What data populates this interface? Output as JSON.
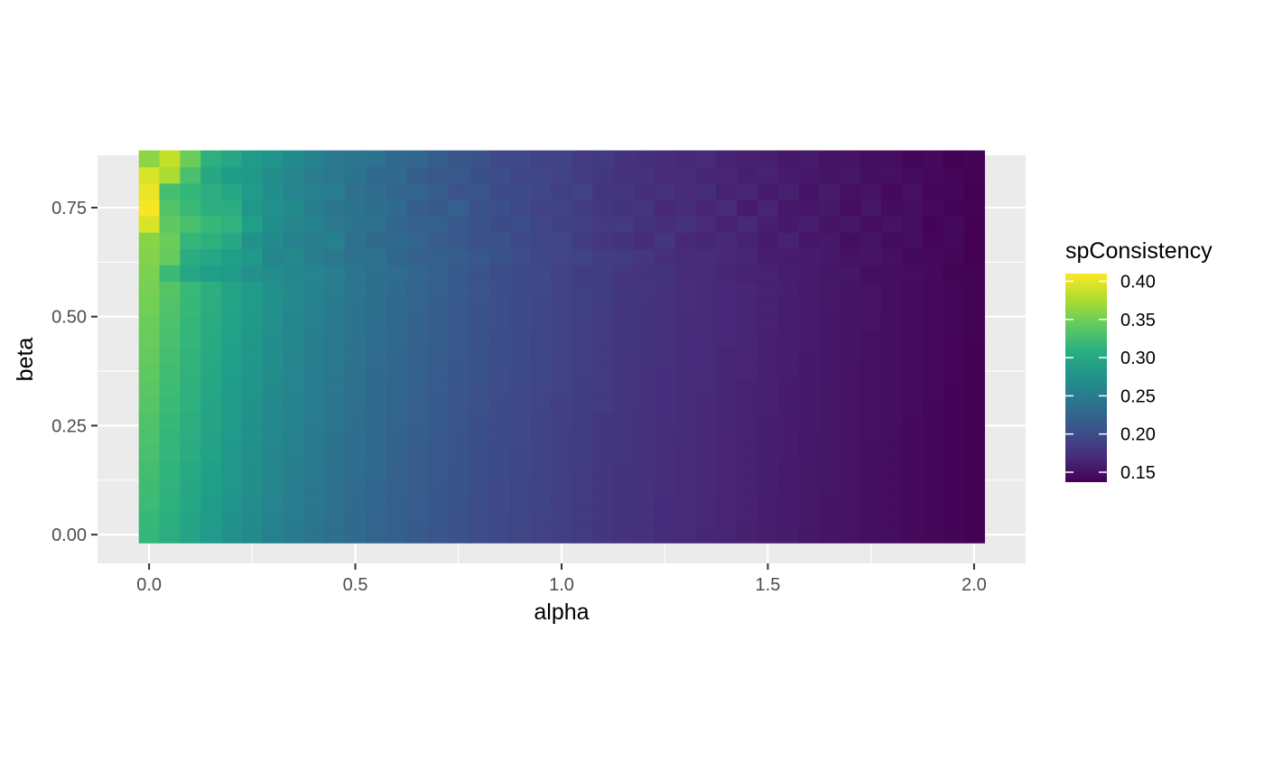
{
  "chart_data": {
    "type": "heatmap",
    "xlabel": "alpha",
    "ylabel": "beta",
    "xlim": [
      -0.125,
      2.125
    ],
    "ylim": [
      -0.066,
      0.87
    ],
    "x_ticks": [
      0.0,
      0.5,
      1.0,
      1.5,
      2.0
    ],
    "x_tick_labels": [
      "0.0",
      "0.5",
      "1.0",
      "1.5",
      "2.0"
    ],
    "y_ticks": [
      0.0,
      0.25,
      0.5,
      0.75
    ],
    "y_tick_labels": [
      "0.00",
      "0.25",
      "0.50",
      "0.75"
    ],
    "x": [
      0.0,
      0.05,
      0.1,
      0.15,
      0.2,
      0.25,
      0.3,
      0.35,
      0.4,
      0.45,
      0.5,
      0.55,
      0.6,
      0.65,
      0.7,
      0.75,
      0.8,
      0.85,
      0.9,
      0.95,
      1.0,
      1.05,
      1.1,
      1.15,
      1.2,
      1.25,
      1.3,
      1.35,
      1.4,
      1.45,
      1.5,
      1.55,
      1.6,
      1.65,
      1.7,
      1.75,
      1.8,
      1.85,
      1.9,
      1.95,
      2.0
    ],
    "y": [
      0.0,
      0.0375,
      0.075,
      0.1125,
      0.15,
      0.1875,
      0.225,
      0.2625,
      0.3,
      0.3375,
      0.375,
      0.4125,
      0.45,
      0.4875,
      0.525,
      0.5625,
      0.6,
      0.6375,
      0.675,
      0.7125,
      0.75,
      0.7875,
      0.825,
      0.8625
    ],
    "rows_note": "z rows correspond to y (bottom to top), columns to x",
    "z": [
      [
        0.318,
        0.306,
        0.295,
        0.284,
        0.275,
        0.266,
        0.257,
        0.249,
        0.242,
        0.236,
        0.23,
        0.224,
        0.219,
        0.214,
        0.209,
        0.205,
        0.201,
        0.197,
        0.193,
        0.19,
        0.187,
        0.183,
        0.18,
        0.177,
        0.175,
        0.172,
        0.169,
        0.166,
        0.164,
        0.161,
        0.159,
        0.157,
        0.154,
        0.152,
        0.15,
        0.148,
        0.146,
        0.144,
        0.142,
        0.14,
        0.138
      ],
      [
        0.32,
        0.308,
        0.297,
        0.286,
        0.277,
        0.268,
        0.259,
        0.251,
        0.244,
        0.237,
        0.231,
        0.225,
        0.22,
        0.215,
        0.21,
        0.206,
        0.201,
        0.197,
        0.194,
        0.19,
        0.187,
        0.184,
        0.181,
        0.178,
        0.175,
        0.172,
        0.169,
        0.167,
        0.164,
        0.162,
        0.159,
        0.157,
        0.155,
        0.152,
        0.15,
        0.148,
        0.146,
        0.144,
        0.142,
        0.14,
        0.138
      ],
      [
        0.323,
        0.31,
        0.299,
        0.288,
        0.278,
        0.269,
        0.26,
        0.252,
        0.245,
        0.238,
        0.232,
        0.226,
        0.22,
        0.215,
        0.21,
        0.206,
        0.202,
        0.198,
        0.194,
        0.191,
        0.187,
        0.184,
        0.181,
        0.178,
        0.175,
        0.172,
        0.17,
        0.167,
        0.164,
        0.162,
        0.159,
        0.157,
        0.155,
        0.152,
        0.15,
        0.148,
        0.146,
        0.144,
        0.142,
        0.14,
        0.138
      ],
      [
        0.325,
        0.312,
        0.301,
        0.29,
        0.28,
        0.271,
        0.262,
        0.254,
        0.246,
        0.239,
        0.233,
        0.227,
        0.221,
        0.216,
        0.211,
        0.207,
        0.202,
        0.198,
        0.194,
        0.191,
        0.188,
        0.184,
        0.181,
        0.178,
        0.175,
        0.173,
        0.17,
        0.167,
        0.165,
        0.162,
        0.16,
        0.157,
        0.155,
        0.153,
        0.15,
        0.148,
        0.146,
        0.144,
        0.142,
        0.14,
        0.138
      ],
      [
        0.327,
        0.314,
        0.302,
        0.291,
        0.281,
        0.272,
        0.263,
        0.255,
        0.247,
        0.24,
        0.234,
        0.228,
        0.222,
        0.217,
        0.212,
        0.207,
        0.203,
        0.199,
        0.195,
        0.191,
        0.188,
        0.185,
        0.181,
        0.178,
        0.176,
        0.173,
        0.17,
        0.167,
        0.165,
        0.162,
        0.16,
        0.157,
        0.155,
        0.153,
        0.151,
        0.148,
        0.146,
        0.144,
        0.142,
        0.14,
        0.138
      ],
      [
        0.33,
        0.316,
        0.304,
        0.293,
        0.283,
        0.273,
        0.264,
        0.256,
        0.248,
        0.241,
        0.235,
        0.228,
        0.223,
        0.217,
        0.212,
        0.208,
        0.203,
        0.199,
        0.195,
        0.192,
        0.188,
        0.185,
        0.182,
        0.179,
        0.176,
        0.173,
        0.17,
        0.168,
        0.165,
        0.162,
        0.16,
        0.158,
        0.155,
        0.153,
        0.151,
        0.148,
        0.146,
        0.144,
        0.142,
        0.14,
        0.138
      ],
      [
        0.332,
        0.318,
        0.306,
        0.294,
        0.284,
        0.274,
        0.265,
        0.257,
        0.249,
        0.242,
        0.235,
        0.229,
        0.223,
        0.218,
        0.213,
        0.208,
        0.204,
        0.199,
        0.196,
        0.192,
        0.188,
        0.185,
        0.182,
        0.179,
        0.176,
        0.173,
        0.171,
        0.168,
        0.165,
        0.163,
        0.16,
        0.158,
        0.155,
        0.153,
        0.151,
        0.149,
        0.146,
        0.144,
        0.142,
        0.14,
        0.138
      ],
      [
        0.334,
        0.32,
        0.307,
        0.296,
        0.285,
        0.275,
        0.266,
        0.258,
        0.25,
        0.243,
        0.236,
        0.23,
        0.224,
        0.219,
        0.214,
        0.209,
        0.204,
        0.2,
        0.196,
        0.192,
        0.189,
        0.186,
        0.182,
        0.179,
        0.176,
        0.174,
        0.171,
        0.168,
        0.166,
        0.163,
        0.16,
        0.158,
        0.156,
        0.153,
        0.151,
        0.149,
        0.147,
        0.144,
        0.142,
        0.14,
        0.138
      ],
      [
        0.337,
        0.322,
        0.309,
        0.297,
        0.286,
        0.276,
        0.267,
        0.259,
        0.251,
        0.244,
        0.237,
        0.231,
        0.225,
        0.219,
        0.214,
        0.209,
        0.205,
        0.2,
        0.196,
        0.193,
        0.189,
        0.186,
        0.183,
        0.18,
        0.177,
        0.174,
        0.171,
        0.168,
        0.166,
        0.163,
        0.161,
        0.158,
        0.156,
        0.153,
        0.151,
        0.149,
        0.147,
        0.145,
        0.142,
        0.14,
        0.138
      ],
      [
        0.339,
        0.324,
        0.311,
        0.299,
        0.288,
        0.278,
        0.268,
        0.26,
        0.252,
        0.245,
        0.238,
        0.231,
        0.225,
        0.22,
        0.215,
        0.21,
        0.205,
        0.201,
        0.197,
        0.193,
        0.19,
        0.186,
        0.183,
        0.18,
        0.177,
        0.174,
        0.171,
        0.169,
        0.166,
        0.163,
        0.161,
        0.158,
        0.156,
        0.154,
        0.151,
        0.149,
        0.147,
        0.145,
        0.143,
        0.14,
        0.138
      ],
      [
        0.341,
        0.326,
        0.313,
        0.3,
        0.289,
        0.279,
        0.27,
        0.261,
        0.253,
        0.246,
        0.239,
        0.232,
        0.226,
        0.221,
        0.215,
        0.21,
        0.206,
        0.201,
        0.197,
        0.194,
        0.19,
        0.187,
        0.183,
        0.18,
        0.177,
        0.174,
        0.172,
        0.169,
        0.166,
        0.164,
        0.161,
        0.159,
        0.156,
        0.154,
        0.151,
        0.149,
        0.147,
        0.145,
        0.143,
        0.141,
        0.138
      ],
      [
        0.344,
        0.328,
        0.314,
        0.302,
        0.291,
        0.28,
        0.271,
        0.262,
        0.254,
        0.247,
        0.24,
        0.233,
        0.227,
        0.221,
        0.216,
        0.211,
        0.206,
        0.202,
        0.198,
        0.194,
        0.19,
        0.187,
        0.184,
        0.181,
        0.178,
        0.175,
        0.172,
        0.169,
        0.166,
        0.164,
        0.161,
        0.159,
        0.156,
        0.154,
        0.152,
        0.149,
        0.147,
        0.145,
        0.143,
        0.141,
        0.138
      ],
      [
        0.346,
        0.33,
        0.316,
        0.303,
        0.292,
        0.281,
        0.272,
        0.263,
        0.255,
        0.247,
        0.24,
        0.234,
        0.228,
        0.222,
        0.217,
        0.212,
        0.207,
        0.202,
        0.198,
        0.194,
        0.191,
        0.187,
        0.184,
        0.181,
        0.178,
        0.175,
        0.172,
        0.169,
        0.167,
        0.164,
        0.161,
        0.159,
        0.157,
        0.154,
        0.152,
        0.149,
        0.147,
        0.145,
        0.143,
        0.141,
        0.139
      ],
      [
        0.348,
        0.332,
        0.318,
        0.305,
        0.293,
        0.283,
        0.273,
        0.264,
        0.256,
        0.248,
        0.241,
        0.235,
        0.229,
        0.223,
        0.217,
        0.212,
        0.207,
        0.203,
        0.199,
        0.195,
        0.191,
        0.188,
        0.184,
        0.181,
        0.178,
        0.175,
        0.172,
        0.17,
        0.167,
        0.164,
        0.162,
        0.159,
        0.157,
        0.154,
        0.152,
        0.15,
        0.147,
        0.145,
        0.143,
        0.141,
        0.139
      ],
      [
        0.351,
        0.334,
        0.32,
        0.306,
        0.295,
        0.284,
        0.274,
        0.265,
        0.257,
        0.249,
        0.242,
        0.236,
        0.229,
        0.224,
        0.218,
        0.213,
        0.208,
        0.203,
        0.199,
        0.195,
        0.192,
        0.188,
        0.185,
        0.182,
        0.178,
        0.176,
        0.173,
        0.17,
        0.167,
        0.164,
        0.162,
        0.159,
        0.157,
        0.155,
        0.152,
        0.15,
        0.148,
        0.145,
        0.143,
        0.141,
        0.139
      ],
      [
        0.353,
        0.336,
        0.321,
        0.308,
        0.296,
        0.285,
        0.275,
        0.266,
        0.258,
        0.25,
        0.243,
        0.236,
        0.23,
        0.224,
        0.219,
        0.213,
        0.209,
        0.204,
        0.2,
        0.196,
        0.192,
        0.188,
        0.185,
        0.182,
        0.179,
        0.176,
        0.173,
        0.17,
        0.167,
        0.165,
        0.162,
        0.16,
        0.157,
        0.155,
        0.152,
        0.15,
        0.148,
        0.145,
        0.143,
        0.141,
        0.139
      ],
      [
        0.355,
        0.322,
        0.298,
        0.29,
        0.285,
        0.273,
        0.27,
        0.262,
        0.26,
        0.252,
        0.244,
        0.236,
        0.233,
        0.227,
        0.221,
        0.214,
        0.208,
        0.202,
        0.199,
        0.197,
        0.19,
        0.185,
        0.186,
        0.18,
        0.177,
        0.178,
        0.172,
        0.17,
        0.166,
        0.162,
        0.163,
        0.159,
        0.157,
        0.154,
        0.153,
        0.148,
        0.147,
        0.146,
        0.144,
        0.139,
        0.14
      ],
      [
        0.358,
        0.345,
        0.305,
        0.298,
        0.29,
        0.282,
        0.262,
        0.265,
        0.254,
        0.246,
        0.239,
        0.24,
        0.227,
        0.22,
        0.219,
        0.217,
        0.211,
        0.206,
        0.201,
        0.195,
        0.193,
        0.191,
        0.186,
        0.184,
        0.18,
        0.174,
        0.17,
        0.171,
        0.168,
        0.166,
        0.16,
        0.158,
        0.158,
        0.156,
        0.15,
        0.151,
        0.149,
        0.143,
        0.144,
        0.142,
        0.137
      ],
      [
        0.36,
        0.348,
        0.318,
        0.31,
        0.3,
        0.275,
        0.268,
        0.257,
        0.253,
        0.256,
        0.238,
        0.232,
        0.23,
        0.225,
        0.215,
        0.211,
        0.205,
        0.207,
        0.197,
        0.193,
        0.193,
        0.185,
        0.18,
        0.176,
        0.172,
        0.18,
        0.168,
        0.166,
        0.168,
        0.162,
        0.158,
        0.162,
        0.154,
        0.156,
        0.148,
        0.152,
        0.145,
        0.148,
        0.141,
        0.143,
        0.137
      ],
      [
        0.395,
        0.342,
        0.33,
        0.32,
        0.312,
        0.29,
        0.27,
        0.263,
        0.258,
        0.248,
        0.242,
        0.239,
        0.226,
        0.221,
        0.22,
        0.213,
        0.205,
        0.2,
        0.202,
        0.194,
        0.189,
        0.187,
        0.183,
        0.183,
        0.176,
        0.173,
        0.176,
        0.169,
        0.163,
        0.167,
        0.16,
        0.156,
        0.159,
        0.151,
        0.153,
        0.147,
        0.15,
        0.146,
        0.14,
        0.144,
        0.138
      ],
      [
        0.408,
        0.335,
        0.322,
        0.308,
        0.306,
        0.28,
        0.275,
        0.268,
        0.253,
        0.244,
        0.24,
        0.236,
        0.23,
        0.218,
        0.214,
        0.219,
        0.207,
        0.204,
        0.196,
        0.191,
        0.192,
        0.186,
        0.181,
        0.178,
        0.179,
        0.168,
        0.172,
        0.165,
        0.17,
        0.158,
        0.164,
        0.155,
        0.154,
        0.156,
        0.147,
        0.154,
        0.145,
        0.147,
        0.143,
        0.14,
        0.139
      ],
      [
        0.402,
        0.328,
        0.318,
        0.306,
        0.299,
        0.285,
        0.272,
        0.261,
        0.256,
        0.252,
        0.237,
        0.233,
        0.226,
        0.224,
        0.217,
        0.208,
        0.21,
        0.199,
        0.199,
        0.195,
        0.188,
        0.19,
        0.179,
        0.181,
        0.174,
        0.176,
        0.169,
        0.172,
        0.162,
        0.165,
        0.157,
        0.161,
        0.152,
        0.158,
        0.149,
        0.15,
        0.144,
        0.149,
        0.141,
        0.142,
        0.137
      ],
      [
        0.395,
        0.375,
        0.33,
        0.3,
        0.288,
        0.282,
        0.27,
        0.264,
        0.25,
        0.245,
        0.241,
        0.23,
        0.231,
        0.218,
        0.212,
        0.212,
        0.204,
        0.203,
        0.194,
        0.193,
        0.19,
        0.184,
        0.182,
        0.176,
        0.177,
        0.17,
        0.171,
        0.166,
        0.165,
        0.16,
        0.162,
        0.157,
        0.156,
        0.152,
        0.153,
        0.148,
        0.149,
        0.145,
        0.143,
        0.141,
        0.139
      ],
      [
        0.362,
        0.385,
        0.348,
        0.31,
        0.298,
        0.285,
        0.278,
        0.268,
        0.259,
        0.248,
        0.243,
        0.24,
        0.228,
        0.226,
        0.216,
        0.21,
        0.207,
        0.198,
        0.197,
        0.191,
        0.192,
        0.183,
        0.184,
        0.178,
        0.174,
        0.172,
        0.168,
        0.169,
        0.163,
        0.161,
        0.16,
        0.155,
        0.157,
        0.15,
        0.151,
        0.146,
        0.147,
        0.142,
        0.144,
        0.138,
        0.14
      ]
    ],
    "legend_title": "spConsistency",
    "legend_ticks": [
      0.15,
      0.2,
      0.25,
      0.3,
      0.35,
      0.4
    ],
    "legend_tick_labels": [
      "0.15",
      "0.20",
      "0.25",
      "0.30",
      "0.35",
      "0.40"
    ],
    "legend_range": [
      0.137,
      0.41
    ],
    "legend_position": "right",
    "grid": true,
    "colormap": "viridis",
    "panel_background": "#ebebeb",
    "grid_color": "#ffffff"
  }
}
